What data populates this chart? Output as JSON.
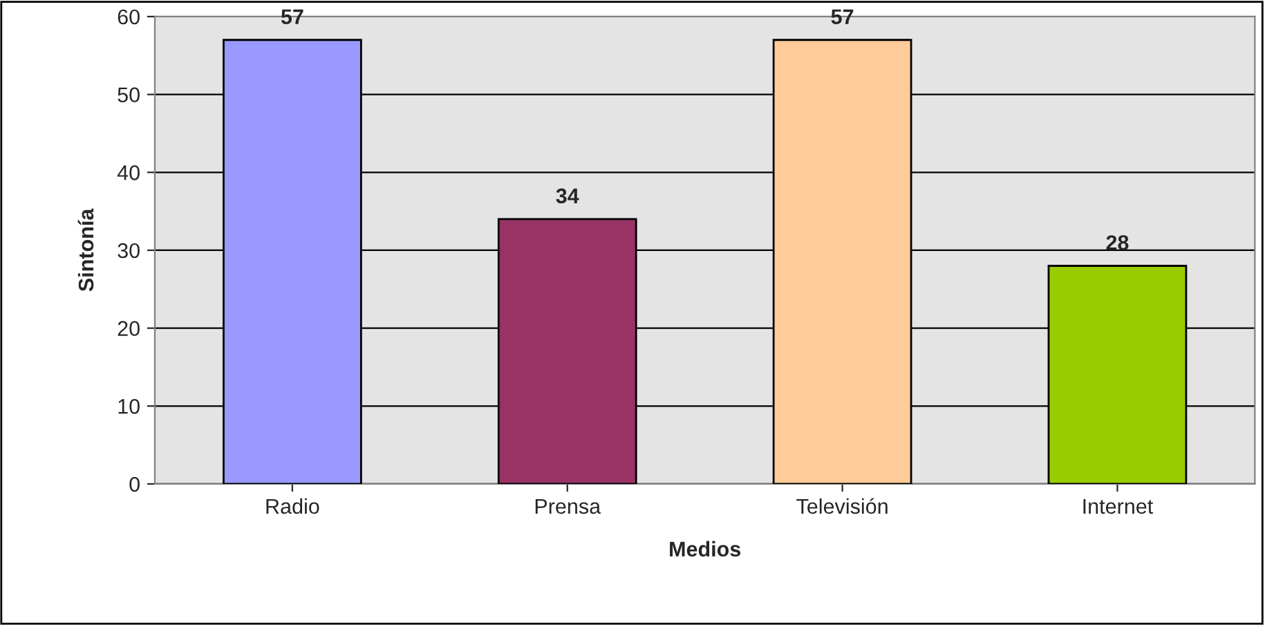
{
  "chart_data": {
    "type": "bar",
    "xlabel": "Medios",
    "ylabel": "Sintonía",
    "categories": [
      "Radio",
      "Prensa",
      "Televisión",
      "Internet"
    ],
    "values": [
      57,
      34,
      57,
      28
    ],
    "colors": [
      "#9999ff",
      "#993366",
      "#ffcc99",
      "#99cc00"
    ],
    "ylim": [
      0,
      60
    ],
    "yticks": [
      0,
      10,
      20,
      30,
      40,
      50,
      60
    ],
    "grid": "y",
    "data_labels": true
  }
}
